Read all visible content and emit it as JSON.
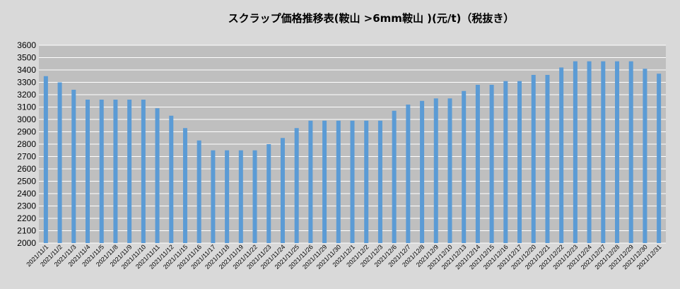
{
  "chart_data": {
    "type": "bar",
    "title": "スクラップ価格推移表(鞍山 >6mm鞍山 )(元/t)（税抜き）",
    "xlabel": "",
    "ylabel": "",
    "ylim": [
      2000,
      3600
    ],
    "ytick_step": 100,
    "yticks": [
      "2000",
      "2100",
      "2200",
      "2300",
      "2400",
      "2500",
      "2600",
      "2700",
      "2800",
      "2900",
      "3000",
      "3100",
      "3200",
      "3300",
      "3400",
      "3500",
      "3600"
    ],
    "grid": true,
    "legend": "none",
    "categories": [
      "2021/11/1",
      "2021/11/2",
      "2021/11/3",
      "2021/11/4",
      "2021/11/5",
      "2021/11/8",
      "2021/11/9",
      "2021/11/10",
      "2021/11/11",
      "2021/11/12",
      "2021/11/15",
      "2021/11/16",
      "2021/11/17",
      "2021/11/18",
      "2021/11/19",
      "2021/11/22",
      "2021/11/23",
      "2021/11/24",
      "2021/11/25",
      "2021/11/26",
      "2021/11/29",
      "2021/11/30",
      "2021/12/1",
      "2021/12/2",
      "2021/12/3",
      "2021/12/6",
      "2021/12/7",
      "2021/12/8",
      "2021/12/9",
      "2021/12/10",
      "2021/12/13",
      "2021/12/14",
      "2021/12/15",
      "2021/12/16",
      "2021/12/17",
      "2021/12/20",
      "2021/12/21",
      "2021/12/22",
      "2021/12/23",
      "2021/12/24",
      "2021/12/27",
      "2021/12/28",
      "2021/12/29",
      "2021/12/30",
      "2021/12/31"
    ],
    "values": [
      3350,
      3300,
      3240,
      3160,
      3160,
      3160,
      3160,
      3160,
      3090,
      3030,
      2930,
      2830,
      2750,
      2750,
      2750,
      2750,
      2800,
      2850,
      2930,
      2990,
      2990,
      2990,
      2990,
      2990,
      2990,
      3070,
      3120,
      3150,
      3170,
      3170,
      3230,
      3280,
      3280,
      3310,
      3310,
      3360,
      3360,
      3420,
      3470,
      3470,
      3470,
      3470,
      3470,
      3410,
      3370
    ],
    "colors": {
      "bar": "#5b9bd5",
      "plot_bg": "#bfbfbf",
      "page_bg": "#d9d9d9",
      "grid": "#ffffff",
      "text": "#000000"
    }
  }
}
